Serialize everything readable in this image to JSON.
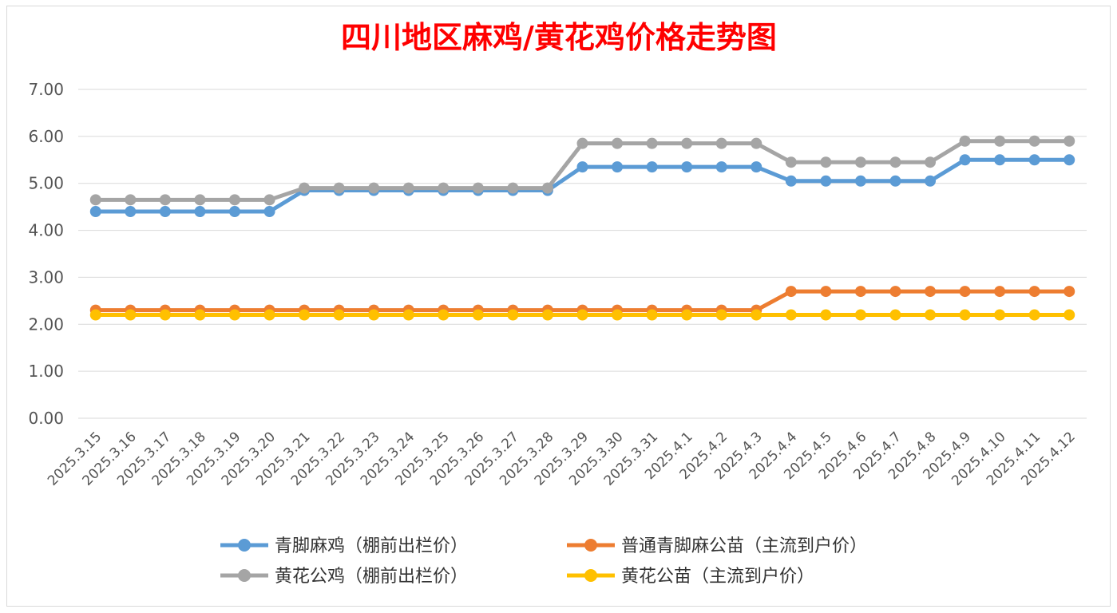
{
  "chart_data": {
    "type": "line",
    "title": "四川地区麻鸡/黄花鸡价格走势图",
    "xlabel": "",
    "ylabel": "",
    "ylim": [
      0,
      7
    ],
    "yticks": [
      "0.00",
      "1.00",
      "2.00",
      "3.00",
      "4.00",
      "5.00",
      "6.00",
      "7.00"
    ],
    "grid": true,
    "legend_position": "bottom",
    "categories": [
      "2025.3.15",
      "2025.3.16",
      "2025.3.17",
      "2025.3.18",
      "2025.3.19",
      "2025.3.20",
      "2025.3.21",
      "2025.3.22",
      "2025.3.23",
      "2025.3.24",
      "2025.3.25",
      "2025.3.26",
      "2025.3.27",
      "2025.3.28",
      "2025.3.29",
      "2025.3.30",
      "2025.3.31",
      "2025.4.1",
      "2025.4.2",
      "2025.4.3",
      "2025.4.4",
      "2025.4.5",
      "2025.4.6",
      "2025.4.7",
      "2025.4.8",
      "2025.4.9",
      "2025.4.10",
      "2025.4.11",
      "2025.4.12"
    ],
    "series": [
      {
        "name": "青脚麻鸡（棚前出栏价）",
        "color": "#5b9bd5",
        "values": [
          4.4,
          4.4,
          4.4,
          4.4,
          4.4,
          4.4,
          4.85,
          4.85,
          4.85,
          4.85,
          4.85,
          4.85,
          4.85,
          4.85,
          5.35,
          5.35,
          5.35,
          5.35,
          5.35,
          5.35,
          5.05,
          5.05,
          5.05,
          5.05,
          5.05,
          5.5,
          5.5,
          5.5,
          5.5
        ]
      },
      {
        "name": "普通青脚麻公苗（主流到户价）",
        "color": "#ed7d31",
        "values": [
          2.3,
          2.3,
          2.3,
          2.3,
          2.3,
          2.3,
          2.3,
          2.3,
          2.3,
          2.3,
          2.3,
          2.3,
          2.3,
          2.3,
          2.3,
          2.3,
          2.3,
          2.3,
          2.3,
          2.3,
          2.7,
          2.7,
          2.7,
          2.7,
          2.7,
          2.7,
          2.7,
          2.7,
          2.7
        ]
      },
      {
        "name": "黄花公鸡（棚前出栏价）",
        "color": "#a5a5a5",
        "values": [
          4.65,
          4.65,
          4.65,
          4.65,
          4.65,
          4.65,
          4.9,
          4.9,
          4.9,
          4.9,
          4.9,
          4.9,
          4.9,
          4.9,
          5.85,
          5.85,
          5.85,
          5.85,
          5.85,
          5.85,
          5.45,
          5.45,
          5.45,
          5.45,
          5.45,
          5.9,
          5.9,
          5.9,
          5.9
        ]
      },
      {
        "name": "黄花公苗（主流到户价）",
        "color": "#ffc000",
        "values": [
          2.2,
          2.2,
          2.2,
          2.2,
          2.2,
          2.2,
          2.2,
          2.2,
          2.2,
          2.2,
          2.2,
          2.2,
          2.2,
          2.2,
          2.2,
          2.2,
          2.2,
          2.2,
          2.2,
          2.2,
          2.2,
          2.2,
          2.2,
          2.2,
          2.2,
          2.2,
          2.2,
          2.2,
          2.2
        ]
      }
    ]
  }
}
